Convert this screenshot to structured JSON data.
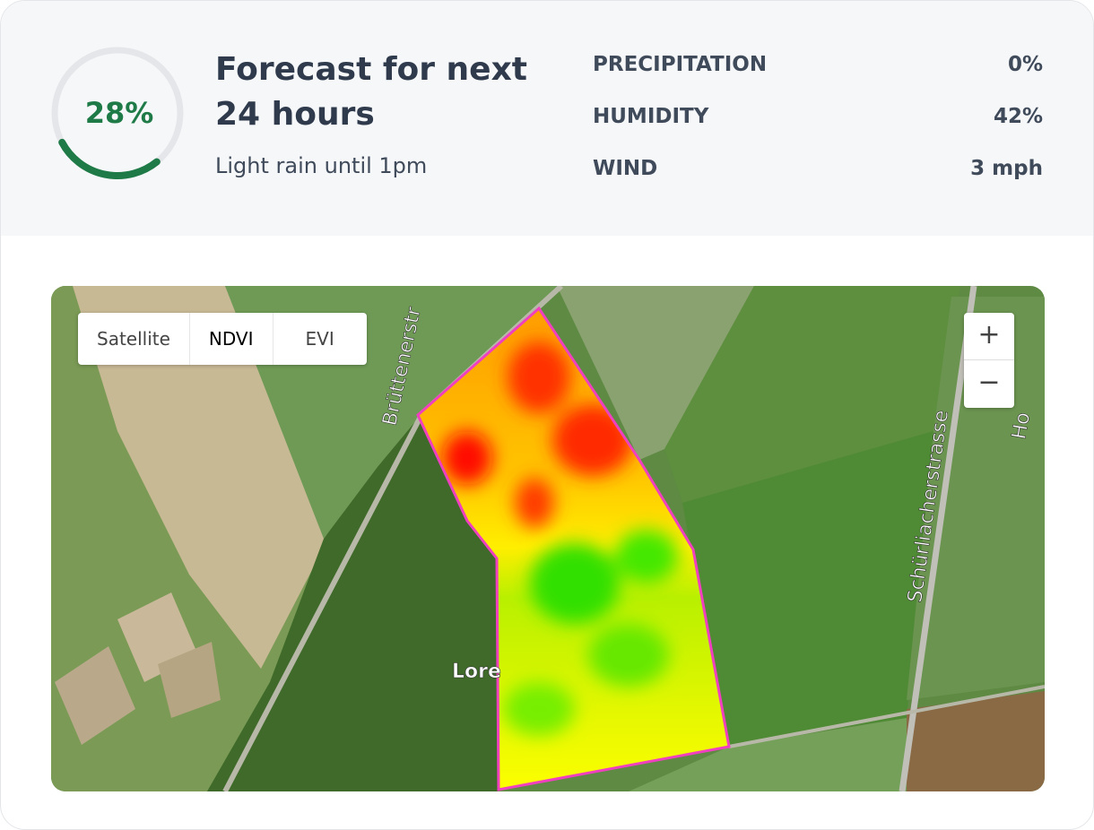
{
  "gauge": {
    "value": 28,
    "label": "28%"
  },
  "forecast": {
    "title": "Forecast for next 24 hours",
    "subtitle": "Light rain until 1pm"
  },
  "metrics": [
    {
      "label": "PRECIPITATION",
      "value": "0%"
    },
    {
      "label": "HUMIDITY",
      "value": "42%"
    },
    {
      "label": "WIND",
      "value": "3 mph"
    }
  ],
  "map": {
    "layers": [
      "Satellite",
      "NDVI",
      "EVI"
    ],
    "active_layer": "NDVI",
    "zoom_in": "+",
    "zoom_out": "−",
    "labels": [
      "Brüttenerstr",
      "Schürliacherstrasse",
      "Lore",
      "Ho"
    ]
  }
}
